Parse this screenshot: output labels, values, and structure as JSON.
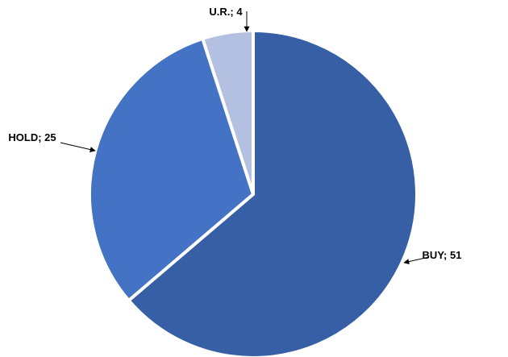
{
  "chart_data": {
    "type": "pie",
    "slices": [
      {
        "category": "BUY",
        "value": 51,
        "label": "BUY; 51",
        "color": "#375FA6"
      },
      {
        "category": "HOLD",
        "value": 25,
        "label": "HOLD; 25",
        "color": "#4472C4"
      },
      {
        "category": "U.R.",
        "value": 4,
        "label": "U.R.; 4",
        "color": "#B4C0E2"
      }
    ],
    "start_angle_deg": 0,
    "direction": "clockwise",
    "legend": "none",
    "data_labels": "outside-with-leader-arrows"
  }
}
